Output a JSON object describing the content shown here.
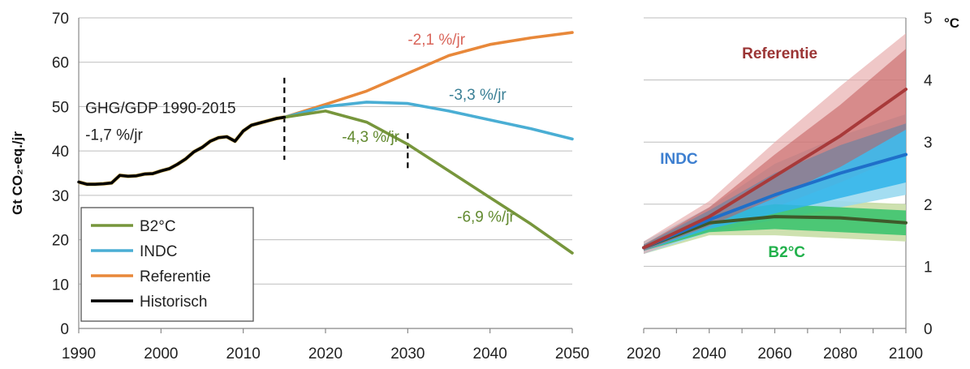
{
  "chart_data": [
    {
      "type": "line",
      "ylabel": "Gt CO₂-eq./jr",
      "xlim": [
        1990,
        2050
      ],
      "ylim": [
        0,
        70
      ],
      "xticks": [
        "1990",
        "2000",
        "2010",
        "2020",
        "2030",
        "2040",
        "2050"
      ],
      "yticks": [
        "0",
        "10",
        "20",
        "30",
        "40",
        "50",
        "60",
        "70"
      ],
      "grid": "horizontal",
      "legend_position": "bottom-left",
      "series": [
        {
          "name": "Historisch",
          "color": "#000000",
          "x": [
            1990,
            1991,
            1992,
            1993,
            1994,
            1995,
            1996,
            1997,
            1998,
            1999,
            2000,
            2001,
            2002,
            2003,
            2004,
            2005,
            2006,
            2007,
            2008,
            2009,
            2010,
            2011,
            2012,
            2013,
            2014,
            2015
          ],
          "y": [
            33,
            32.5,
            32.5,
            32.6,
            32.8,
            34.5,
            34.3,
            34.4,
            34.8,
            34.9,
            35.5,
            36,
            37,
            38.2,
            39.8,
            40.8,
            42.2,
            43,
            43.2,
            42.2,
            44.5,
            45.8,
            46.3,
            46.8,
            47.3,
            47.6
          ]
        },
        {
          "name": "Referentie",
          "color": "#e8883a",
          "x": [
            2015,
            2020,
            2025,
            2030,
            2035,
            2040,
            2045,
            2050
          ],
          "y": [
            47.6,
            50.5,
            53.5,
            57.5,
            61.5,
            64,
            65.5,
            66.7
          ]
        },
        {
          "name": "INDC",
          "color": "#4aaed4",
          "x": [
            2015,
            2020,
            2025,
            2030,
            2035,
            2040,
            2045,
            2050
          ],
          "y": [
            47.6,
            50,
            51,
            50.7,
            49,
            47,
            45,
            42.7
          ]
        },
        {
          "name": "B2°C",
          "color": "#77963c",
          "x": [
            2015,
            2020,
            2025,
            2030,
            2035,
            2040,
            2045,
            2050
          ],
          "y": [
            47.6,
            49,
            46.5,
            41.5,
            35.5,
            29.5,
            23.5,
            17
          ]
        }
      ],
      "vlines": [
        2015,
        2030
      ],
      "annotations": [
        {
          "text": "-2,1 %/jr",
          "color": "#d9655a",
          "x": 2030,
          "y": 64
        },
        {
          "text": "-3,3 %/jr",
          "color": "#3a7f95",
          "x": 2035,
          "y": 51.5
        },
        {
          "text": "-4,3 %/jr",
          "color": "#628a30",
          "x": 2022,
          "y": 42
        },
        {
          "text": "-6,9 %/jr",
          "color": "#628a30",
          "x": 2036,
          "y": 24
        },
        {
          "text": "GHG/GDP 1990-2015",
          "color": "#222222",
          "x": 1990.8,
          "y": 48.5
        },
        {
          "text": "-1,7 %/jr",
          "color": "#222222",
          "x": 1990.8,
          "y": 42.5
        }
      ],
      "legend": {
        "entries": [
          {
            "name": "B2°C",
            "color": "#77963c"
          },
          {
            "name": "INDC",
            "color": "#4aaed4"
          },
          {
            "name": "Referentie",
            "color": "#e8883a"
          },
          {
            "name": "Historisch",
            "color": "#000000"
          }
        ]
      }
    },
    {
      "type": "area",
      "ylabel": "°C",
      "xlim": [
        2020,
        2100
      ],
      "ylim": [
        0,
        5
      ],
      "xticks": [
        "2020",
        "2040",
        "2060",
        "2080",
        "2100"
      ],
      "yticks": [
        "0",
        "1",
        "2",
        "3",
        "4",
        "5"
      ],
      "grid": "horizontal",
      "series": [
        {
          "name": "Referentie",
          "color": "#a83a3a",
          "x": [
            2020,
            2040,
            2060,
            2080,
            2100
          ],
          "median": [
            1.3,
            1.8,
            2.45,
            3.1,
            3.85
          ],
          "inner_band": [
            [
              1.25,
              1.35
            ],
            [
              1.65,
              1.95
            ],
            [
              2.1,
              2.8
            ],
            [
              2.6,
              3.6
            ],
            [
              3.2,
              4.5
            ]
          ],
          "outer_band": [
            [
              1.2,
              1.4
            ],
            [
              1.6,
              2.05
            ],
            [
              1.95,
              3.0
            ],
            [
              2.35,
              3.9
            ],
            [
              2.8,
              4.75
            ]
          ]
        },
        {
          "name": "INDC",
          "color": "#1f6fc9",
          "x": [
            2020,
            2040,
            2060,
            2080,
            2100
          ],
          "median": [
            1.3,
            1.75,
            2.15,
            2.5,
            2.8
          ],
          "inner_band": [
            [
              1.25,
              1.35
            ],
            [
              1.6,
              1.9
            ],
            [
              1.85,
              2.5
            ],
            [
              2.1,
              2.95
            ],
            [
              2.35,
              3.3
            ]
          ],
          "outer_band": [
            [
              1.2,
              1.4
            ],
            [
              1.55,
              1.95
            ],
            [
              1.75,
              2.65
            ],
            [
              1.95,
              3.1
            ],
            [
              2.15,
              3.45
            ]
          ]
        },
        {
          "name": "B2°C",
          "color": "#2db966",
          "x": [
            2020,
            2040,
            2060,
            2080,
            2100
          ],
          "median": [
            1.3,
            1.7,
            1.8,
            1.78,
            1.7
          ],
          "inner_band": [
            [
              1.25,
              1.35
            ],
            [
              1.55,
              1.85
            ],
            [
              1.6,
              2.0
            ],
            [
              1.55,
              1.95
            ],
            [
              1.5,
              1.9
            ]
          ],
          "outer_band": [
            [
              1.2,
              1.4
            ],
            [
              1.5,
              1.9
            ],
            [
              1.5,
              2.1
            ],
            [
              1.45,
              2.05
            ],
            [
              1.4,
              2.0
            ]
          ]
        }
      ],
      "labels": [
        {
          "text": "Referentie",
          "color": "#9b3535",
          "x": 2050,
          "y": 4.35
        },
        {
          "text": "INDC",
          "color": "#3d7fd0",
          "x": 2025,
          "y": 2.65
        },
        {
          "text": "B2°C",
          "color": "#22b14c",
          "x": 2058,
          "y": 1.15
        }
      ]
    }
  ]
}
